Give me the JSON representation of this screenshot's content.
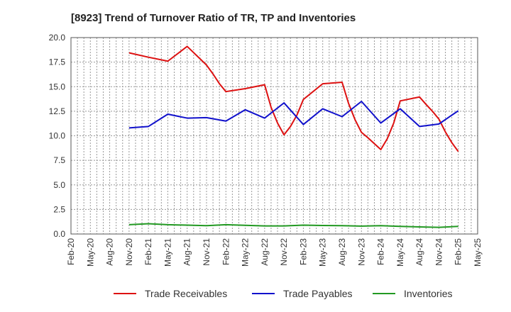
{
  "chart_data": {
    "type": "line",
    "title": "[8923]  Trend of Turnover Ratio of TR, TP and Inventories",
    "xlabel": "",
    "ylabel": "",
    "ylim": [
      0,
      20
    ],
    "yticks": [
      "0.0",
      "2.5",
      "5.0",
      "7.5",
      "10.0",
      "12.5",
      "15.0",
      "17.5",
      "20.0"
    ],
    "x_tick_labels": [
      "Feb-20",
      "May-20",
      "Aug-20",
      "Nov-20",
      "Feb-21",
      "May-21",
      "Aug-21",
      "Nov-21",
      "Feb-22",
      "May-22",
      "Aug-22",
      "Nov-22",
      "Feb-23",
      "May-23",
      "Aug-23",
      "Nov-23",
      "Feb-24",
      "May-24",
      "Aug-24",
      "Nov-24",
      "Feb-25",
      "May-25"
    ],
    "x": [
      "2020-02",
      "2020-03",
      "2020-04",
      "2020-05",
      "2020-06",
      "2020-07",
      "2020-08",
      "2020-09",
      "2020-10",
      "2020-11",
      "2020-12",
      "2021-01",
      "2021-02",
      "2021-03",
      "2021-04",
      "2021-05",
      "2021-06",
      "2021-07",
      "2021-08",
      "2021-09",
      "2021-10",
      "2021-11",
      "2021-12",
      "2022-01",
      "2022-02",
      "2022-03",
      "2022-04",
      "2022-05",
      "2022-06",
      "2022-07",
      "2022-08",
      "2022-09",
      "2022-10",
      "2022-11",
      "2022-12",
      "2023-01",
      "2023-02",
      "2023-03",
      "2023-04",
      "2023-05",
      "2023-06",
      "2023-07",
      "2023-08",
      "2023-09",
      "2023-10",
      "2023-11",
      "2023-12",
      "2024-01",
      "2024-02",
      "2024-03",
      "2024-04",
      "2024-05",
      "2024-06",
      "2024-07",
      "2024-08",
      "2024-09",
      "2024-10",
      "2024-11",
      "2024-12",
      "2025-01",
      "2025-02",
      "2025-03",
      "2025-04",
      "2025-05"
    ],
    "grid": true,
    "legend_position": "bottom",
    "series": [
      {
        "name": "Trade Receivables",
        "color": "#dd1111",
        "points": [
          [
            "2020-11",
            18.45
          ],
          [
            "2021-02",
            18.0
          ],
          [
            "2021-05",
            17.6
          ],
          [
            "2021-08",
            19.1
          ],
          [
            "2021-11",
            17.2
          ],
          [
            "2021-12",
            16.3
          ],
          [
            "2022-01",
            15.3
          ],
          [
            "2022-02",
            14.5
          ],
          [
            "2022-05",
            14.8
          ],
          [
            "2022-08",
            15.2
          ],
          [
            "2022-09",
            12.9
          ],
          [
            "2022-10",
            11.3
          ],
          [
            "2022-11",
            10.1
          ],
          [
            "2022-12",
            10.95
          ],
          [
            "2023-01",
            12.1
          ],
          [
            "2023-02",
            13.7
          ],
          [
            "2023-05",
            15.3
          ],
          [
            "2023-08",
            15.45
          ],
          [
            "2023-09",
            13.3
          ],
          [
            "2023-10",
            11.65
          ],
          [
            "2023-11",
            10.35
          ],
          [
            "2023-12",
            9.8
          ],
          [
            "2024-01",
            9.2
          ],
          [
            "2024-02",
            8.6
          ],
          [
            "2024-03",
            9.7
          ],
          [
            "2024-04",
            11.3
          ],
          [
            "2024-05",
            13.55
          ],
          [
            "2024-08",
            13.95
          ],
          [
            "2024-09",
            13.2
          ],
          [
            "2024-10",
            12.5
          ],
          [
            "2024-11",
            11.7
          ],
          [
            "2024-12",
            10.4
          ],
          [
            "2025-01",
            9.3
          ],
          [
            "2025-02",
            8.4
          ]
        ]
      },
      {
        "name": "Trade Payables",
        "color": "#1111cc",
        "points": [
          [
            "2020-11",
            10.8
          ],
          [
            "2021-02",
            10.95
          ],
          [
            "2021-05",
            12.2
          ],
          [
            "2021-08",
            11.8
          ],
          [
            "2021-11",
            11.85
          ],
          [
            "2022-02",
            11.5
          ],
          [
            "2022-05",
            12.65
          ],
          [
            "2022-08",
            11.8
          ],
          [
            "2022-11",
            13.35
          ],
          [
            "2023-02",
            11.15
          ],
          [
            "2023-05",
            12.75
          ],
          [
            "2023-08",
            11.95
          ],
          [
            "2023-11",
            13.5
          ],
          [
            "2024-02",
            11.3
          ],
          [
            "2024-05",
            12.75
          ],
          [
            "2024-08",
            10.95
          ],
          [
            "2024-11",
            11.2
          ],
          [
            "2025-02",
            12.55
          ]
        ]
      },
      {
        "name": "Inventories",
        "color": "#229922",
        "points": [
          [
            "2020-11",
            0.95
          ],
          [
            "2021-02",
            1.05
          ],
          [
            "2021-05",
            0.95
          ],
          [
            "2021-08",
            0.9
          ],
          [
            "2021-11",
            0.85
          ],
          [
            "2022-02",
            0.95
          ],
          [
            "2022-05",
            0.88
          ],
          [
            "2022-08",
            0.82
          ],
          [
            "2022-11",
            0.82
          ],
          [
            "2023-02",
            0.9
          ],
          [
            "2023-05",
            0.87
          ],
          [
            "2023-08",
            0.85
          ],
          [
            "2023-11",
            0.8
          ],
          [
            "2024-02",
            0.85
          ],
          [
            "2024-05",
            0.78
          ],
          [
            "2024-08",
            0.72
          ],
          [
            "2024-11",
            0.68
          ],
          [
            "2025-02",
            0.78
          ]
        ]
      }
    ]
  }
}
